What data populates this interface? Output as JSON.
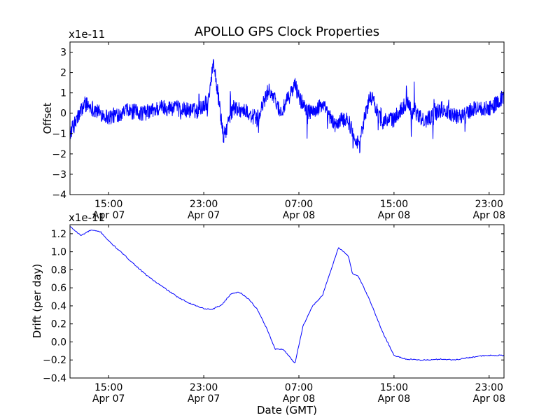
{
  "chart_data": [
    {
      "type": "line",
      "title": "APOLLO GPS Clock Properties",
      "ylabel": "Offset",
      "xlabel": "",
      "y_multiplier": "x1e-11",
      "ylim": [
        -4,
        3.5
      ],
      "y_ticks": [
        -4,
        -3,
        -2,
        -1,
        0,
        1,
        2,
        3
      ],
      "y_tick_labels": [
        "−4",
        "−3",
        "−2",
        "−1",
        "0",
        "1",
        "2",
        "3"
      ],
      "xlim": [
        "2012-04-07 11:45",
        "2012-04-09 00:15"
      ],
      "x_ticks": [
        {
          "x": "2012-04-07 15:00",
          "time": "15:00",
          "date": "Apr 07"
        },
        {
          "x": "2012-04-07 23:00",
          "time": "23:00",
          "date": "Apr 07"
        },
        {
          "x": "2012-04-08 07:00",
          "time": "07:00",
          "date": "Apr 08"
        },
        {
          "x": "2012-04-08 15:00",
          "time": "15:00",
          "date": "Apr 08"
        },
        {
          "x": "2012-04-08 23:00",
          "time": "23:00",
          "date": "Apr 08"
        }
      ],
      "line_color": "#0000ff",
      "series": [
        {
          "x": [
            "2012-04-07 11:45",
            "2012-04-07 13:00",
            "2012-04-07 14:00",
            "2012-04-07 15:00",
            "2012-04-07 16:30",
            "2012-04-07 18:00",
            "2012-04-07 19:30",
            "2012-04-07 21:00",
            "2012-04-07 22:30",
            "2012-04-07 23:20",
            "2012-04-07 23:50",
            "2012-04-08 00:40",
            "2012-04-08 01:30",
            "2012-04-08 02:30",
            "2012-04-08 03:30",
            "2012-04-08 04:30",
            "2012-04-08 05:30",
            "2012-04-08 06:40",
            "2012-04-08 07:10",
            "2012-04-08 08:00",
            "2012-04-08 09:00",
            "2012-04-08 10:00",
            "2012-04-08 11:00",
            "2012-04-08 12:00",
            "2012-04-08 13:00",
            "2012-04-08 14:00",
            "2012-04-08 15:00",
            "2012-04-08 16:00",
            "2012-04-08 17:30",
            "2012-04-08 19:00",
            "2012-04-08 20:30",
            "2012-04-08 22:00",
            "2012-04-08 23:00",
            "2012-04-09 00:15"
          ],
          "values": [
            -1.0,
            0.5,
            0.1,
            -0.2,
            0.1,
            0.0,
            0.3,
            0.2,
            0.1,
            0.6,
            2.5,
            -1.2,
            0.3,
            0.1,
            -0.3,
            1.2,
            0.0,
            1.4,
            0.6,
            0.0,
            0.4,
            -0.6,
            -0.2,
            -1.5,
            0.9,
            -0.4,
            -0.3,
            0.5,
            -0.4,
            0.2,
            -0.2,
            0.3,
            0.2,
            0.8
          ],
          "noise_amplitude": 0.4
        }
      ]
    },
    {
      "type": "line",
      "title": "",
      "ylabel": "Drift (per day)",
      "xlabel": "Date (GMT)",
      "y_multiplier": "x1e-11",
      "ylim": [
        -0.4,
        1.3
      ],
      "y_ticks": [
        -0.4,
        -0.2,
        0.0,
        0.2,
        0.4,
        0.6,
        0.8,
        1.0,
        1.2
      ],
      "y_tick_labels": [
        "−0.4",
        "−0.2",
        "0.0",
        "0.2",
        "0.4",
        "0.6",
        "0.8",
        "1.0",
        "1.2"
      ],
      "xlim": [
        "2012-04-07 11:45",
        "2012-04-09 00:15"
      ],
      "x_ticks": [
        {
          "x": "2012-04-07 15:00",
          "time": "15:00",
          "date": "Apr 07"
        },
        {
          "x": "2012-04-07 23:00",
          "time": "23:00",
          "date": "Apr 07"
        },
        {
          "x": "2012-04-08 07:00",
          "time": "07:00",
          "date": "Apr 08"
        },
        {
          "x": "2012-04-08 15:00",
          "time": "15:00",
          "date": "Apr 08"
        },
        {
          "x": "2012-04-08 23:00",
          "time": "23:00",
          "date": "Apr 08"
        }
      ],
      "line_color": "#0000ff",
      "series": [
        {
          "x": [
            "2012-04-07 11:45",
            "2012-04-07 12:40",
            "2012-04-07 13:30",
            "2012-04-07 14:20",
            "2012-04-07 15:00",
            "2012-04-07 16:00",
            "2012-04-07 17:00",
            "2012-04-07 18:00",
            "2012-04-07 19:00",
            "2012-04-07 20:00",
            "2012-04-07 21:00",
            "2012-04-07 22:00",
            "2012-04-07 23:00",
            "2012-04-07 23:40",
            "2012-04-08 00:30",
            "2012-04-08 01:20",
            "2012-04-08 02:00",
            "2012-04-08 02:50",
            "2012-04-08 03:30",
            "2012-04-08 04:20",
            "2012-04-08 05:00",
            "2012-04-08 05:40",
            "2012-04-08 06:20",
            "2012-04-08 06:40",
            "2012-04-08 07:20",
            "2012-04-08 08:10",
            "2012-04-08 09:00",
            "2012-04-08 09:50",
            "2012-04-08 10:20",
            "2012-04-08 11:10",
            "2012-04-08 11:30",
            "2012-04-08 12:00",
            "2012-04-08 13:00",
            "2012-04-08 14:00",
            "2012-04-08 15:00",
            "2012-04-08 16:00",
            "2012-04-08 17:00",
            "2012-04-08 18:00",
            "2012-04-08 19:00",
            "2012-04-08 20:00",
            "2012-04-08 21:00",
            "2012-04-08 22:00",
            "2012-04-08 23:00",
            "2012-04-09 00:15"
          ],
          "values": [
            1.28,
            1.18,
            1.24,
            1.22,
            1.12,
            1.0,
            0.88,
            0.76,
            0.66,
            0.57,
            0.48,
            0.42,
            0.37,
            0.36,
            0.41,
            0.54,
            0.55,
            0.47,
            0.36,
            0.14,
            -0.08,
            -0.08,
            -0.18,
            -0.24,
            0.17,
            0.4,
            0.52,
            0.85,
            1.05,
            0.95,
            0.76,
            0.73,
            0.45,
            0.12,
            -0.15,
            -0.19,
            -0.2,
            -0.2,
            -0.19,
            -0.2,
            -0.18,
            -0.16,
            -0.15,
            -0.15
          ],
          "noise_amplitude": 0.006
        }
      ]
    }
  ]
}
